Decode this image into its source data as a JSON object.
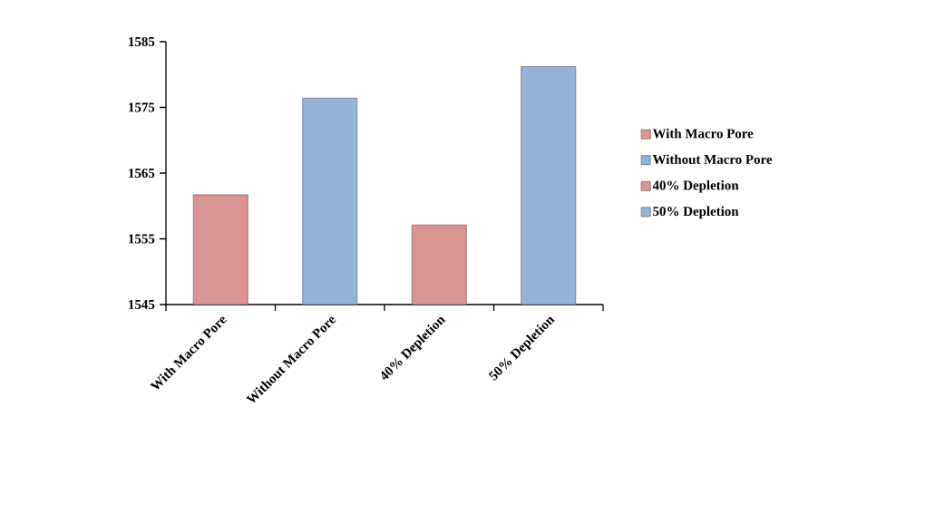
{
  "chart_data": {
    "type": "bar",
    "categories": [
      "With Macro Pore",
      "Without Macro Pore",
      "40% Depletion",
      "50% Depletion"
    ],
    "series": [
      {
        "name": "With Macro Pore",
        "color": "#d99594",
        "values": [
          1561.7,
          null,
          null,
          null
        ]
      },
      {
        "name": "Without Macro Pore",
        "color": "#95b3d7",
        "values": [
          null,
          1576.4,
          null,
          null
        ]
      },
      {
        "name": "40% Depletion",
        "color": "#d99594",
        "values": [
          null,
          null,
          1557.1,
          null
        ]
      },
      {
        "name": "50% Depletion",
        "color": "#95b3d7",
        "values": [
          null,
          null,
          null,
          1581.2
        ]
      }
    ],
    "ylim": [
      1545,
      1585
    ],
    "yticks": [
      1545,
      1555,
      1565,
      1575,
      1585
    ],
    "legend": "right"
  }
}
